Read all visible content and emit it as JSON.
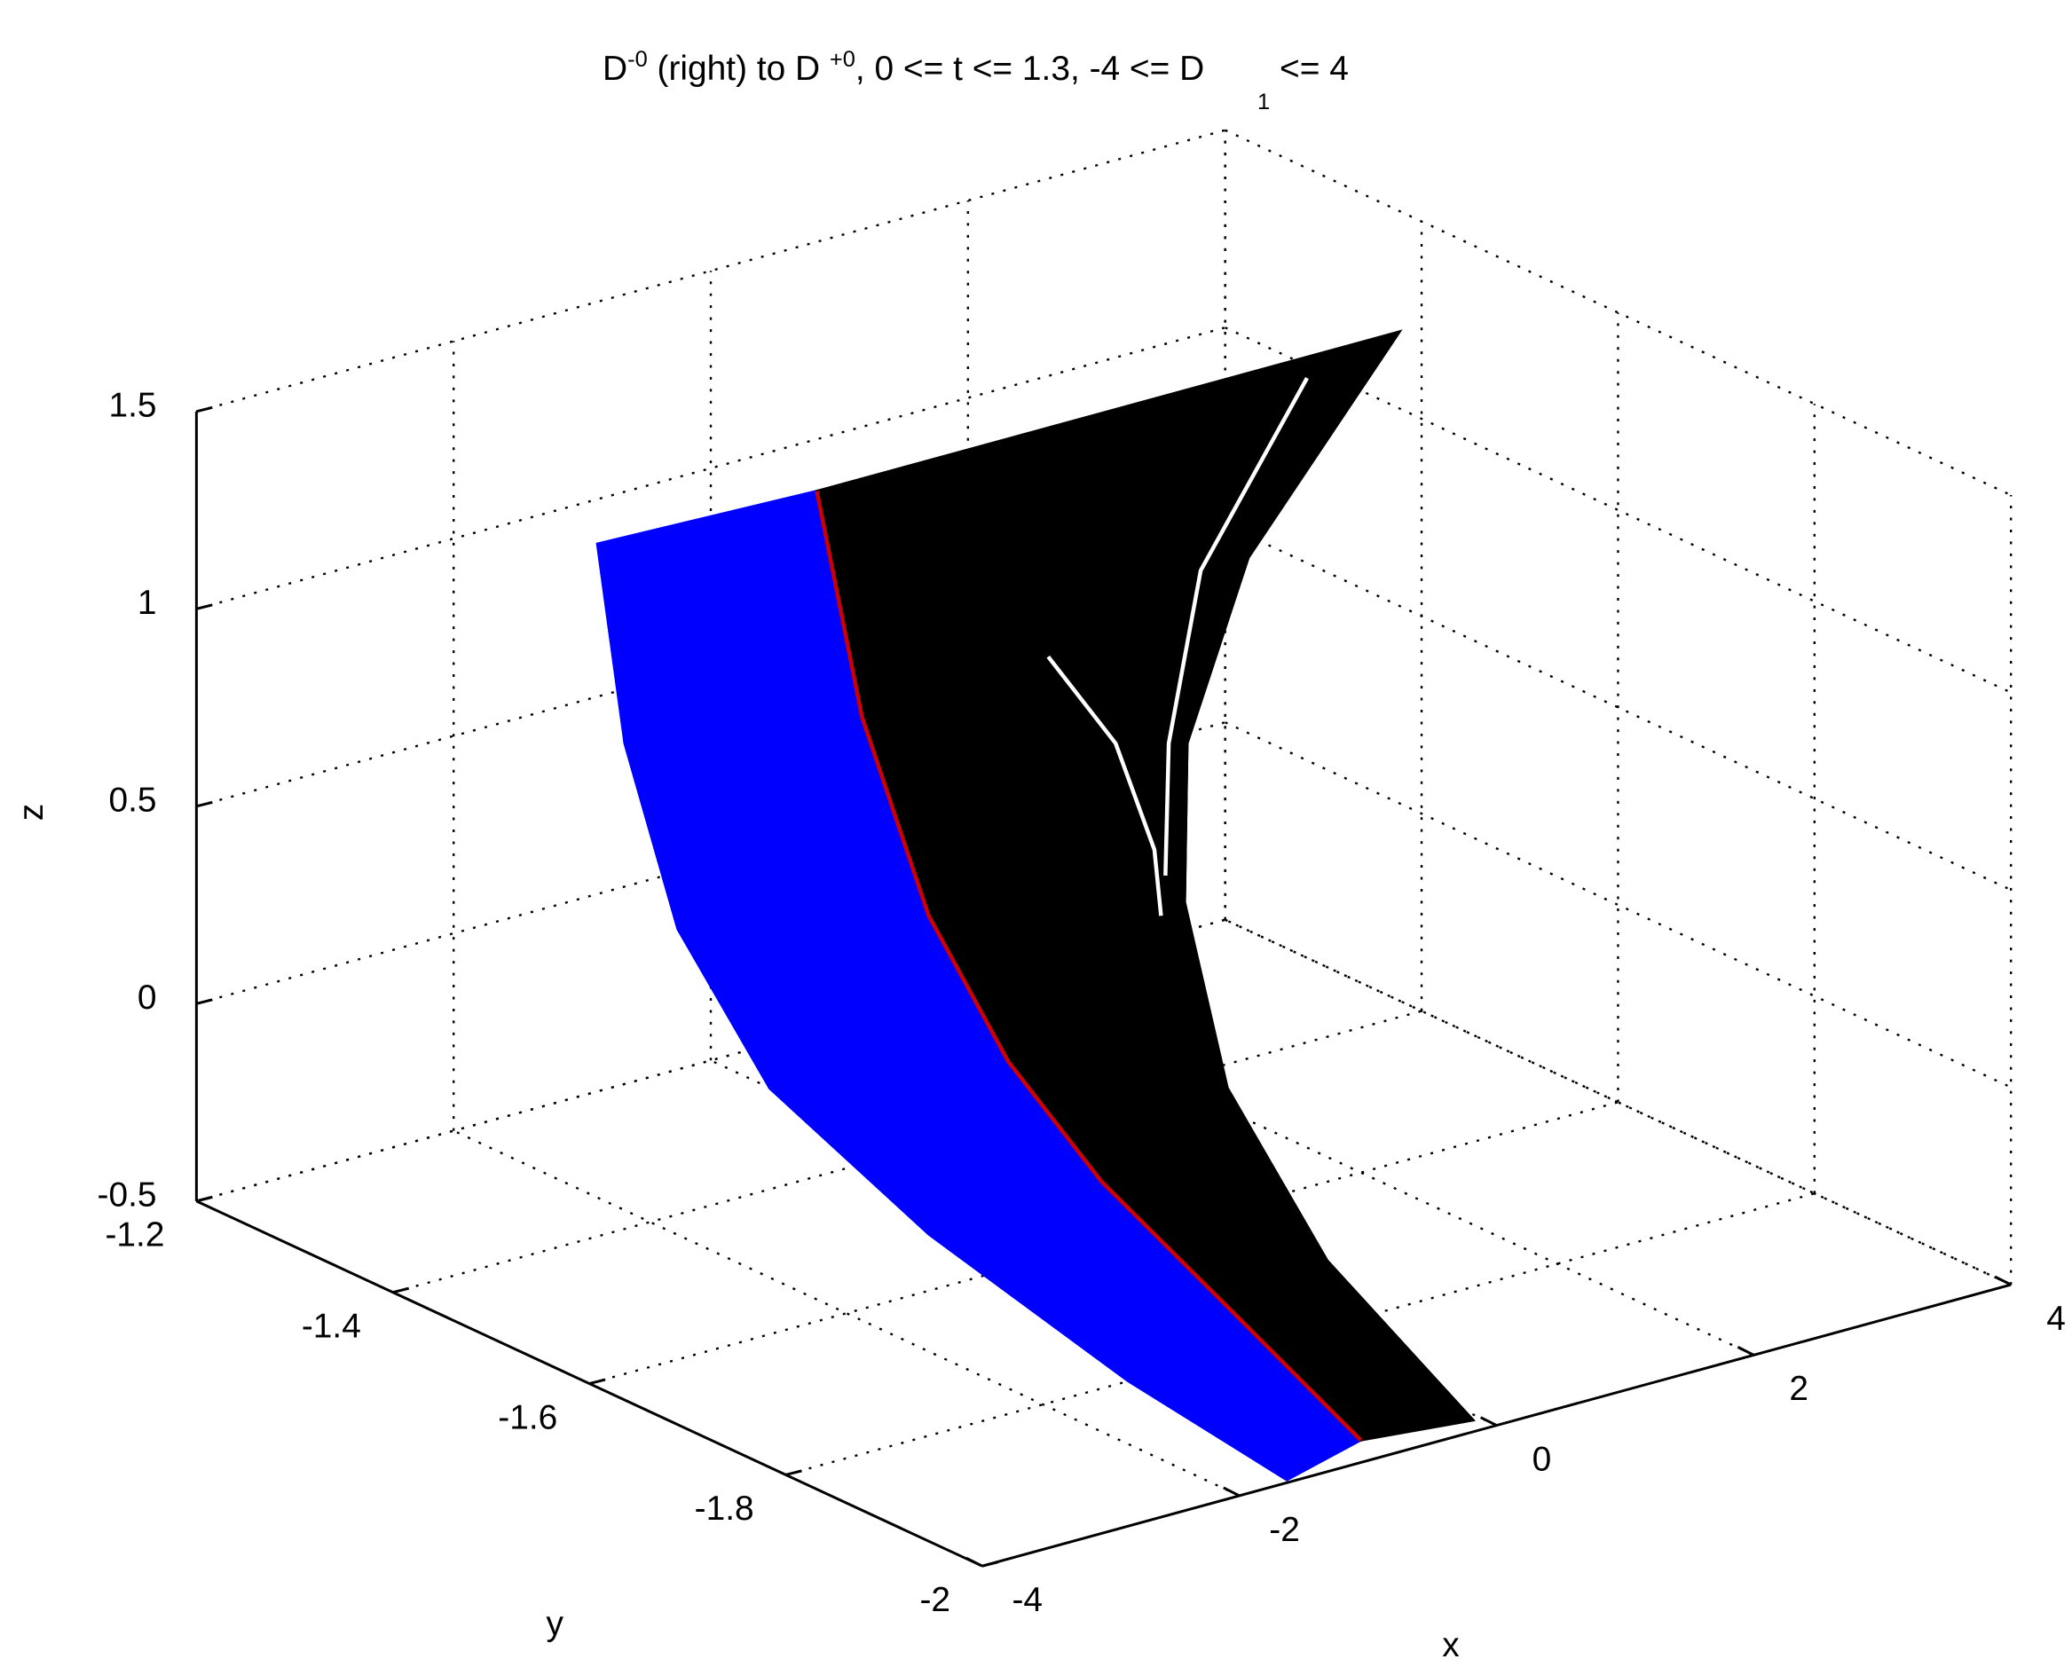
{
  "chart_data": {
    "type": "line3d",
    "title": [
      {
        "text": "D"
      },
      {
        "text": "-0",
        "script": "super"
      },
      {
        "text": " (right) to D "
      },
      {
        "text": "+0",
        "script": "super"
      },
      {
        "text": ", 0 <= t <= 1.3, -4 <= D"
      },
      {
        "text": "1",
        "script": "sub"
      },
      {
        "text": " <= 4"
      }
    ],
    "xlabel": "x",
    "ylabel": "y",
    "zlabel": "z",
    "xlim": [
      -4,
      4
    ],
    "ylim": [
      -2,
      -1.2
    ],
    "zlim": [
      -0.5,
      1.5
    ],
    "xticks": [
      -4,
      -2,
      0,
      2,
      4
    ],
    "yticks": [
      -2,
      -1.8,
      -1.6,
      -1.4,
      -1.2
    ],
    "zticks": [
      -0.5,
      0,
      0.5,
      1,
      1.5
    ],
    "grid": true,
    "series": [
      {
        "color": "#0000ff",
        "edges": [
          {
            "x": [
              -2.6,
              -3.32,
              -3.77,
              -3.75,
              -3.26,
              -2.58,
              -1.6
            ],
            "y": [
              -1.425,
              -1.547,
              -1.66,
              -1.751,
              -1.849,
              -1.962,
              -1.996
            ],
            "z": [
              1.3,
              1.0,
              0.7,
              0.4,
              0.1,
              -0.2,
              -0.5
            ]
          },
          {
            "x": [
              -0.97,
              -1.88,
              -2.4,
              -2.3,
              -1.86,
              -1.28,
              -0.82
            ],
            "y": [
              -1.435,
              -1.6,
              -1.736,
              -1.804,
              -1.841,
              -1.887,
              -1.969
            ],
            "z": [
              1.3,
              1.0,
              0.7,
              0.4,
              0.1,
              -0.2,
              -0.5
            ]
          }
        ]
      },
      {
        "color": "#000000",
        "edges": [
          {
            "x": [
              -0.97,
              -1.88,
              -2.4,
              -2.3,
              -1.86,
              -1.28,
              -0.82
            ],
            "y": [
              -1.435,
              -1.6,
              -1.736,
              -1.804,
              -1.841,
              -1.887,
              -1.969
            ],
            "z": [
              1.3,
              1.0,
              0.7,
              0.4,
              0.1,
              -0.2,
              -0.5
            ]
          },
          {
            "x": [
              3.56,
              1.69,
              0.68,
              0.24,
              -0.26,
              -0.34,
              -0.06
            ],
            "y": [
              -1.435,
              -1.526,
              -1.596,
              -1.651,
              -1.76,
              -1.872,
              -1.984
            ],
            "z": [
              1.3,
              1.0,
              0.7,
              0.4,
              0.1,
              -0.2,
              -0.5
            ]
          }
        ]
      },
      {
        "color": "#cc0000",
        "x": [
          -0.97,
          -1.88,
          -2.4,
          -2.3,
          -1.86,
          -1.28,
          -0.82
        ],
        "y": [
          -1.435,
          -1.6,
          -1.736,
          -1.804,
          -1.841,
          -1.887,
          -1.969
        ],
        "z": [
          1.3,
          1.0,
          0.7,
          0.4,
          0.1,
          -0.2,
          -0.5
        ]
      },
      {
        "color": "#ffffff",
        "x": [
          2.62,
          1.32,
          0.59,
          0.22
        ],
        "y": [
          -1.464,
          -1.526,
          -1.589,
          -1.634
        ],
        "z": [
          1.3,
          1.0,
          0.7,
          0.45
        ]
      },
      {
        "color": "#ffffff",
        "x": [
          0.08,
          0.33,
          0.44,
          0.4
        ],
        "y": [
          -1.533,
          -1.569,
          -1.594,
          -1.606
        ],
        "z": [
          0.9,
          0.7,
          0.45,
          0.3
        ]
      }
    ]
  }
}
